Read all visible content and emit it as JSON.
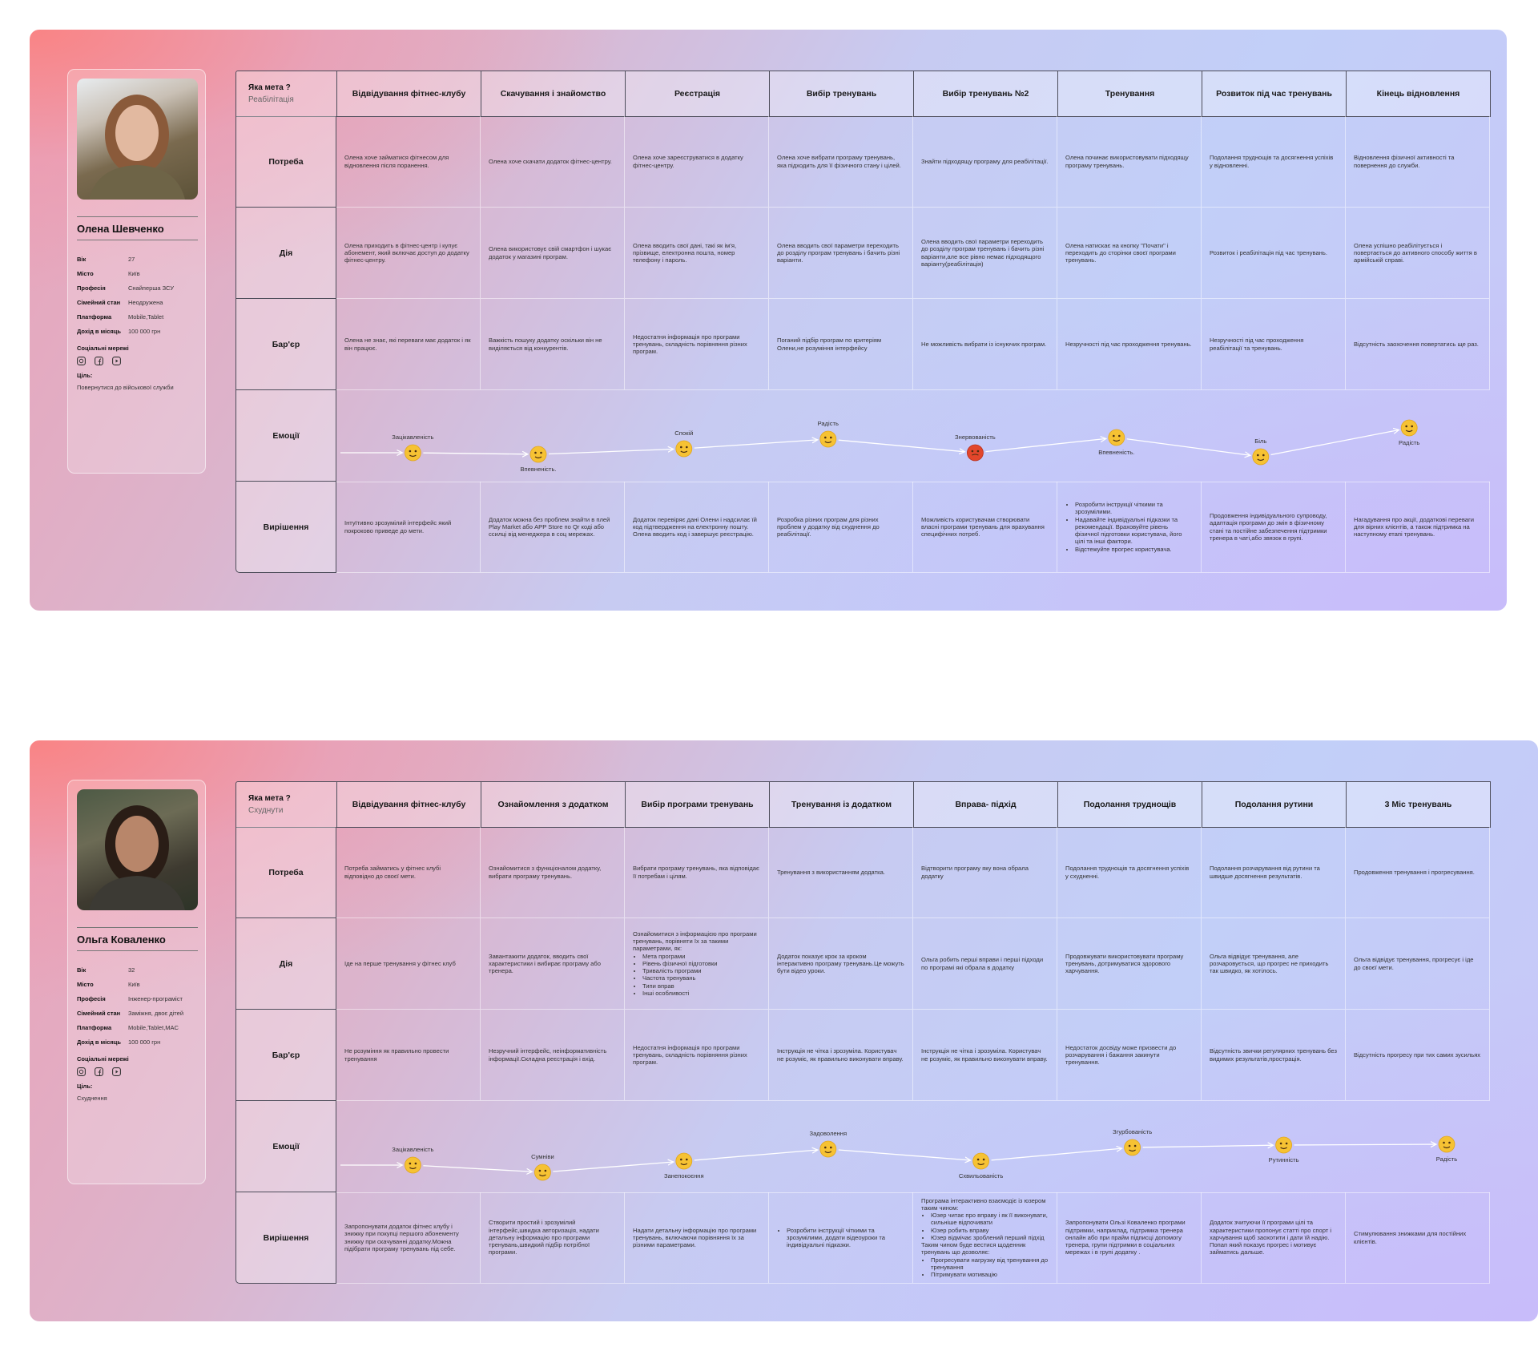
{
  "journeys": [
    {
      "profile": {
        "name": "Олена Шевченко",
        "fields": [
          {
            "label": "Вік",
            "value": "27"
          },
          {
            "label": "Місто",
            "value": "Київ"
          },
          {
            "label": "Професія",
            "value": "Снайперша ЗСУ"
          },
          {
            "label": "Сімейний стан",
            "value": "Неодружена"
          },
          {
            "label": "Платформа",
            "value": "Mobile,Tablet"
          },
          {
            "label": "Дохід в місяць",
            "value": "100 000 грн"
          }
        ],
        "social_label": "Соціальні мережі",
        "goal_label": "Ціль:",
        "goal": "Повернутися до військової служби"
      },
      "goal_question": "Яка мета ?",
      "goal_answer": "Реабілітація",
      "stages": [
        "Відвідування фітнес-клубу",
        "Скачування і знайомство",
        "Реєстрація",
        "Вибір тренувань",
        "Вибір тренувань №2",
        "Тренування",
        "Розвиток під час тренувань",
        "Кінець відновлення"
      ],
      "rows": [
        {
          "label": "Потреба",
          "cells": [
            "Олена хоче займатися фітнесом для відновлення після поранення.",
            "Олена хоче скачати додаток фітнес-центру.",
            "Олена хоче зареєструватися в додатку фітнес-центру.",
            "Олена хоче вибрати програму тренувань, яка підходить для її фізичного стану і цілей.",
            "Знайти підходящу програму для реабілітації.",
            "Олена починає використовувати підходящу програму тренувань.",
            "Подолання труднощів та досягнення успіхів у відновленні.",
            "Відновлення фізичної активності та повернення до служби."
          ]
        },
        {
          "label": "Дія",
          "cells": [
            "Олена приходить в фітнес-центр і купує абонемент, який включає доступ до додатку фітнес-центру.",
            "Олена використовує свій смартфон і шукає додаток у магазині програм.",
            "Олена вводить свої дані, такі як ім'я, прізвище, електронна пошта, номер телефону і пароль.",
            "Олена вводить свої параметри переходить до розділу програм тренувань і бачить різні варіанти.",
            "Олена вводить свої параметри  переходить до розділу програм тренувань і бачить різні варіанти,але все рівно немає підходящого варіанту(реабілітація)",
            "Олена натискає на кнопку \"Почати\" і переходить до сторінки своєї програми тренувань.",
            "Розвиток і реабілітація під час тренувань.",
            "Олена успішно реабілітується і повертається до активного способу життя в армійській справі."
          ]
        },
        {
          "label": "Бар'єр",
          "cells": [
            "Олена не знає, які переваги має додаток і як він працює.",
            "Важкість пошуку додатку оскільки він не виділяється від конкурентів.",
            "Недостатня інформація про програми тренувань, складність порівняння різних програм.",
            "Поганий підбір програм по критеріям Олени,не розуміння інтерфейсу",
            "Не можливість вибрати із існуючих програм.",
            "Незручності під час проходження тренувань.",
            "Незручності під час проходження реабілітації та тренувань.",
            "Відсутність заохочення повертатись ще раз."
          ]
        },
        {
          "label": "Емоції",
          "emotions": [
            "Зацікавленість",
            "Впевненість.",
            "Спокій",
            "Радість",
            "Знервованість",
            "Впевненість.",
            "Біль",
            "Радість"
          ]
        },
        {
          "label": "Вирішення",
          "cells": [
            "Інтуїтивно зрозумілий інтерфейс який покроково приведе до мети.",
            "Додаток можна без проблем знайти в плей Play Market або APP Store по Qr коді або ссилці від менеджера в соц мережах.",
            "Додаток перевіряє дані Олени і надсилає їй код підтвердження на електронну пошту. Олена вводить код і завершує реєстрацію.",
            "Розробка різних програм для різних проблем у додатку від схуднення до реабілітації.",
            "Можливість користувачам створювати власні програми тренувань для врахування специфічних потреб.",
            [
              [
                "Розробити інструкції чіткими та зрозумілими.",
                "Надавайте індивідуальні підказки та рекомендації. Враховуйте рівень фізичної підготовки користувача, його цілі та інші фактори.",
                "Відстежуйте прогрес користувача."
              ]
            ],
            "Продовження індивідуального супроводу, адаптація програми до змін в фізичному стані та постійне забезпечення підтримки тренера в чаті,або звязок в групі.",
            "Нагадування про акції, додаткові переваги для вірних клієнтів, а також підтримка на наступному етапі тренувань."
          ]
        }
      ]
    },
    {
      "profile": {
        "name": "Ольга Коваленко",
        "fields": [
          {
            "label": "Вік",
            "value": "32"
          },
          {
            "label": "Місто",
            "value": "Київ"
          },
          {
            "label": "Професія",
            "value": "Інженер-програміст"
          },
          {
            "label": "Сімейний стан",
            "value": "Заміжня, двоє дітей"
          },
          {
            "label": "Платформа",
            "value": "Mobile,Tablet,MAC"
          },
          {
            "label": "Дохід в місяць",
            "value": "100 000 грн"
          }
        ],
        "social_label": "Соціальні мережі",
        "goal_label": "Ціль:",
        "goal": "Схуднення"
      },
      "goal_question": "Яка мета ?",
      "goal_answer": "Схуднути",
      "stages": [
        "Відвідування фітнес-клубу",
        "Ознайомлення з додатком",
        "Вибір програми тренувань",
        "Тренування із додатком",
        "Вправа- підхід",
        "Подолання труднощів",
        "Подолання рутини",
        "3 Міс тренувань"
      ],
      "rows": [
        {
          "label": "Потреба",
          "cells": [
            "Потреба займатись у фітнес клубі відповідно до своєї мети.",
            "Ознайомитися з функціоналом додатку, вибрати програму тренувань.",
            "Вибрати програму тренувань, яка відповідає її потребам і цілям.",
            "Тренування з використанням додатка.",
            "Відтворити програму яку вона обрала  додатку",
            "Подолання труднощів та досягнення успіхів у схудненні.",
            "Подолання розчарування від рутини та швидше досягнення результатів.",
            "Продовження тренування і прогресування."
          ]
        },
        {
          "label": "Дія",
          "cells": [
            "Іде на перше тренування у фітнес клуб",
            "Завантажити додаток, вводить свої характеристики і вибирає програму або тренера.",
            [
              "Ознайомитися з інформацією про програми тренувань, порівняти їх за такими параметрами, як:",
              [
                "Мета програми",
                "Рівень фізичної підготовки",
                "Тривалість програми",
                "Частота тренувань",
                "Типи вправ",
                "Інші особливості"
              ]
            ],
            "Додаток показує крок за кроком інтерактивно програму тренувань.Це можуть бути відео уроки.",
            "Ольга робить перші вправи і перші підходи по програмі які обрала в додатку",
            "Продовжувати використовувати програму тренувань, дотримуватися здорового харчування.",
            "Ольга відвідує тренування, але розчаровується, що прогрес не приходить так швидко, як хотілось.",
            "Ольга відвідує тренування, прогресує і іде до своєї мети."
          ]
        },
        {
          "label": "Бар'єр",
          "cells": [
            "Не розуміння як правильно провести тренування",
            "Незручний інтерфейс, неінформативність інформації.Складна реєстрація і вхід.",
            "Недостатня інформація про програми тренувань, складність порівняння різних програм.",
            "Інструкція не чітка і зрозуміла. Користувач не розуміє, як правильно виконувати вправу.",
            "Інструкція не чітка і зрозуміла. Користувач не розуміє, як правильно виконувати вправу.",
            "Недостаток досвіду може призвести до розчарування і бажання закинути тренування.",
            "Відсутність звички регулярних тренувань без видимих результатів,прострація.",
            "Відсутність прогресу при тих самих зусильях"
          ]
        },
        {
          "label": "Емоції",
          "emotions": [
            "Зацікавленість",
            "Сумніви",
            "Занепокоєння",
            "Задоволення",
            "Схвильованість",
            "Згурбованість",
            "Рутинність",
            "Радість"
          ]
        },
        {
          "label": "Вирішення",
          "cells": [
            "Запропонувати додаток фітнес клубу і знижку при покупці першого абонементу знижку при скачуванні додатку.Можна підібрати програму тренувань під себе.",
            "Створити простий і зрозумілий інтерфейс,швидка авторизація, надати детальну інформацію про програми тренувань,швидкий підбір потрібної програми.",
            "Надати детальну інформацію про програми тренувань, включаючи порівняння їх за різними параметрами.",
            [
              [
                "Розробити інструкції чіткими та зрозумілими, додати відеоуроки та індивідуальні підказки."
              ]
            ],
            [
              "Програма інтерактивно взаємодіє із юзером таким чином:",
              [
                "Юзер читає про вправу і як її виконувати, сильніше відпочивати",
                "Юзер робить вправу",
                "Юзер відмічає зроблений перший підхід"
              ],
              "Таким чином буде вестися щоденник тренувань що дозволяє:",
              [
                "Прогресувати нагрузку від тренування до тренування",
                "Пітримувати мотивацію"
              ]
            ],
            "Запропонувати Ользі Коваленко програми підтримки, наприклад, підтримка тренера онлайн або при прайм підписці допомогу тренера, групи підтримки в соціальних мережах і в групі додатку .",
            "Додаток зчитуючи її програми цілі та характеристики пропонує статті про спорт і харчування щоб заохотити і дати їй надію. Попап який показує прогрес і мотивує займатись дальше.",
            "Стимулювання знижками для постійних клієнтів."
          ]
        }
      ]
    }
  ]
}
